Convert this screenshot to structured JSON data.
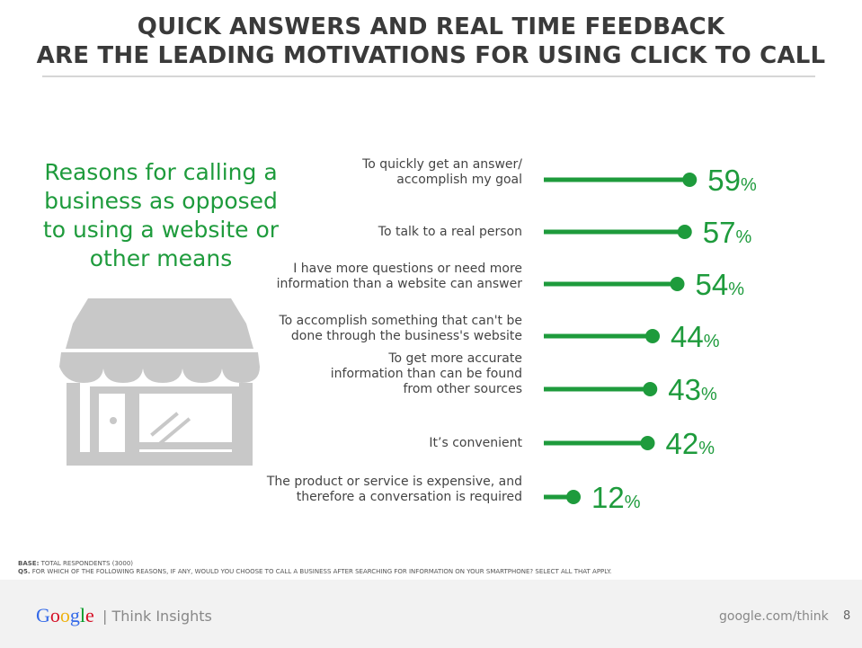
{
  "title": {
    "line1": "QUICK ANSWERS AND REAL TIME FEEDBACK",
    "line2": "ARE THE LEADING MOTIVATIONS FOR USING CLICK TO CALL"
  },
  "subtitle": "Reasons for calling a business as opposed to using a website or other means",
  "icons": {
    "storefront": "storefront-icon"
  },
  "colors": {
    "accent": "#1e9b3c",
    "title": "#3a3a3a",
    "icon": "#c8c8c8"
  },
  "chart_data": {
    "type": "bar",
    "orientation": "horizontal",
    "categories": [
      [
        "To quickly get an answer/",
        "accomplish my goal"
      ],
      [
        "To talk to a real person"
      ],
      [
        "I have more questions or need more",
        "information than a website can answer"
      ],
      [
        "To accomplish something that can't be",
        "done through the business's website"
      ],
      [
        "To get more accurate",
        "information than can be found",
        "from other sources"
      ],
      [
        "It’s convenient"
      ],
      [
        "The product or service is expensive, and",
        "therefore a conversation is required"
      ]
    ],
    "values": [
      59,
      57,
      54,
      44,
      43,
      42,
      12
    ],
    "value_labels": [
      "59",
      "57",
      "54",
      "44",
      "43",
      "42",
      "12"
    ],
    "value_suffix": "%",
    "xlim": [
      0,
      100
    ],
    "grid": false
  },
  "notes": {
    "base_label": "BASE:",
    "base_text": " TOTAL RESPONDENTS (3000)",
    "q_label": "Q5.",
    "q_text": " FOR WHICH OF THE FOLLOWING REASONS, IF ANY, WOULD YOU CHOOSE TO CALL A BUSINESS AFTER SEARCHING FOR INFORMATION ON YOUR SMARTPHONE?  SELECT ALL THAT APPLY."
  },
  "footer": {
    "logo_text": "Google",
    "tagline": "| Think Insights",
    "url": "google.com/think",
    "page": "8"
  }
}
